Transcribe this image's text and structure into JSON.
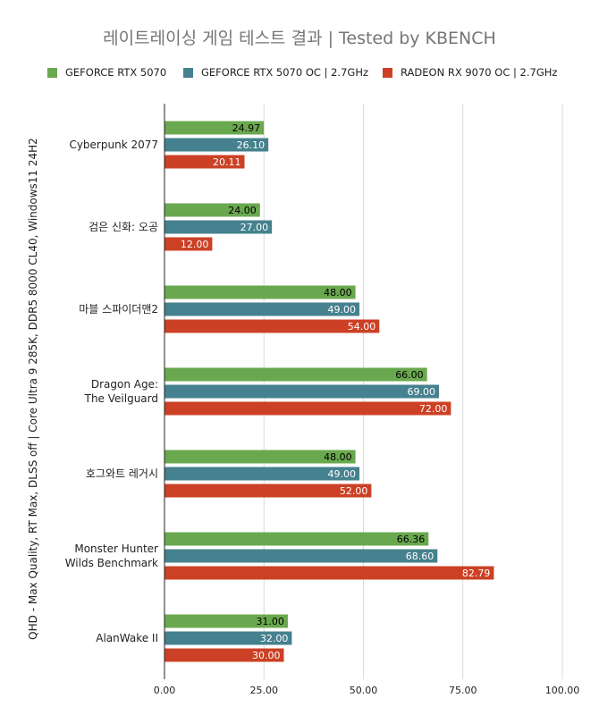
{
  "chart_data": {
    "type": "bar",
    "orientation": "horizontal",
    "title": "레이트레이싱 게임 테스트 결과 | Tested by KBENCH",
    "ylabel": "QHD - Max Quality, RT Max, DLSS off | Core Ultra 9 285K, DDR5 8000 CL40, Windows11 24H2",
    "xlabel": "",
    "xlim": [
      0,
      100
    ],
    "x_ticks": [
      "0.00",
      "25.00",
      "50.00",
      "75.00",
      "100.00"
    ],
    "grid": true,
    "legend_position": "top",
    "categories": [
      "Cyberpunk 2077",
      "검은 신화: 오공",
      "마블 스파이더맨2",
      "Dragon Age: The Veilguard",
      "호그와트 레거시",
      "Monster Hunter Wilds Benchmark",
      "AlanWake II"
    ],
    "series": [
      {
        "name": "GEFORCE RTX 5070",
        "color": "#6aa84f",
        "label_color": "#000000",
        "values": [
          24.97,
          24.0,
          48.0,
          66.0,
          48.0,
          66.36,
          31.0
        ],
        "labels": [
          "24.97",
          "24.00",
          "48.00",
          "66.00",
          "48.00",
          "66.36",
          "31.00"
        ]
      },
      {
        "name": "GEFORCE RTX 5070 OC | 2.7GHz",
        "color": "#45818e",
        "label_color": "#ffffff",
        "values": [
          26.1,
          27.0,
          49.0,
          69.0,
          49.0,
          68.6,
          32.0
        ],
        "labels": [
          "26.10",
          "27.00",
          "49.00",
          "69.00",
          "49.00",
          "68.60",
          "32.00"
        ]
      },
      {
        "name": "RADEON RX 9070 OC | 2.7GHz",
        "color": "#cc4125",
        "label_color": "#ffffff",
        "values": [
          20.11,
          12.0,
          54.0,
          72.0,
          52.0,
          82.79,
          30.0
        ],
        "labels": [
          "20.11",
          "12.00",
          "54.00",
          "72.00",
          "52.00",
          "82.79",
          "30.00"
        ]
      }
    ]
  }
}
